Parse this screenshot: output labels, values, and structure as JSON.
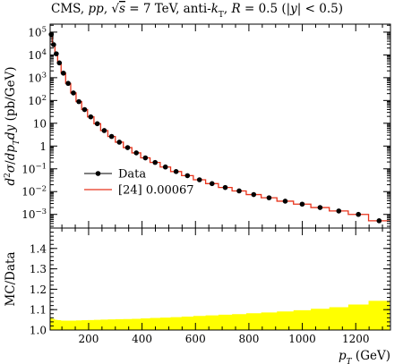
{
  "chart_data": {
    "type": "line",
    "title": {
      "p1": "CMS, ",
      "p2": "pp",
      "p3": ", ",
      "p4": "s",
      "p5": " = 7 TeV, anti-",
      "p6": "k",
      "p7": "T",
      "p8": ", ",
      "p9": "R",
      "p10": " = 0.5 (|",
      "p11": "y",
      "p12": "| < 0.5)"
    },
    "ylabel_main": "d²σ/dp_T dy (pb/GeV)",
    "ylabel_main_parts": {
      "a": "d",
      "a_sup": "2",
      "b": "σ",
      "c": "/",
      "d": "dp",
      "d_sub": "T",
      "e": "dy",
      "f": " (pb/GeV)"
    },
    "ylabel_ratio": "MC/Data",
    "xlabel": {
      "var": "p",
      "sub": "T",
      "unit": " (GeV)"
    },
    "xlim": [
      56,
      1330
    ],
    "main_ylim_log10": [
      -3.6,
      5.35
    ],
    "main_yticks": [
      {
        "exp": 5,
        "label": "10",
        "sup": "5"
      },
      {
        "exp": 4,
        "label": "10",
        "sup": "4"
      },
      {
        "exp": 3,
        "label": "10",
        "sup": "3"
      },
      {
        "exp": 2,
        "label": "10",
        "sup": "2"
      },
      {
        "exp": 1,
        "label": "10",
        "sup": ""
      },
      {
        "exp": 0,
        "label": "1",
        "sup": ""
      },
      {
        "exp": -1,
        "label": "10",
        "sup": "−1"
      },
      {
        "exp": -2,
        "label": "10",
        "sup": "−2"
      },
      {
        "exp": -3,
        "label": "10",
        "sup": "−3"
      }
    ],
    "ratio_ylim": [
      1.0,
      1.5
    ],
    "ratio_yticks": [
      "1.0",
      "1.1",
      "1.2",
      "1.3",
      "1.4"
    ],
    "xticks": [
      "200",
      "400",
      "600",
      "800",
      "1000",
      "1200"
    ],
    "bin_edges": [
      56,
      64,
      74,
      84,
      97,
      114,
      133,
      153,
      174,
      196,
      220,
      245,
      272,
      300,
      330,
      362,
      395,
      430,
      468,
      507,
      548,
      592,
      638,
      686,
      737,
      790,
      846,
      905,
      967,
      1032,
      1101,
      1172,
      1248,
      1327
    ],
    "series": [
      {
        "name": "Data",
        "style": "points",
        "color": "#000000",
        "x": [
          60,
          69,
          79,
          90.5,
          105.5,
          123.5,
          143,
          163.5,
          185,
          208,
          232.5,
          258.5,
          286,
          315,
          346,
          378.5,
          412.5,
          449,
          487.5,
          527.5,
          570,
          615,
          662,
          711.5,
          763.5,
          818,
          875.5,
          936,
          999.5,
          1066.5,
          1136.5,
          1210,
          1287.5
        ],
        "log10_y": [
          4.9,
          4.45,
          4.05,
          3.65,
          3.2,
          2.75,
          2.33,
          1.95,
          1.6,
          1.28,
          0.98,
          0.68,
          0.42,
          0.17,
          -0.07,
          -0.3,
          -0.52,
          -0.72,
          -0.92,
          -1.12,
          -1.3,
          -1.48,
          -1.65,
          -1.82,
          -1.97,
          -2.13,
          -2.27,
          -2.42,
          -2.55,
          -2.7,
          -2.85,
          -3.0,
          -3.28
        ]
      },
      {
        "name": "[24] 0.00067",
        "style": "step",
        "color": "#e8341c",
        "log10_y": [
          4.9,
          4.45,
          4.05,
          3.65,
          3.2,
          2.75,
          2.33,
          1.95,
          1.6,
          1.28,
          0.98,
          0.68,
          0.42,
          0.17,
          -0.07,
          -0.3,
          -0.52,
          -0.72,
          -0.92,
          -1.12,
          -1.3,
          -1.48,
          -1.65,
          -1.82,
          -1.97,
          -2.13,
          -2.27,
          -2.42,
          -2.55,
          -2.7,
          -2.85,
          -3.0,
          -3.28
        ]
      }
    ],
    "ratio_band": {
      "color": "#ffff00",
      "lower": 1.0,
      "upper": [
        1.06,
        1.055,
        1.05,
        1.048,
        1.046,
        1.046,
        1.046,
        1.047,
        1.048,
        1.049,
        1.05,
        1.051,
        1.052,
        1.053,
        1.054,
        1.055,
        1.057,
        1.059,
        1.061,
        1.063,
        1.066,
        1.069,
        1.072,
        1.075,
        1.078,
        1.082,
        1.086,
        1.091,
        1.097,
        1.104,
        1.112,
        1.125,
        1.143
      ]
    },
    "legend": {
      "position": "lower-left",
      "data_label": "Data",
      "mc_label": "[24] 0.00067"
    },
    "grid": false
  }
}
